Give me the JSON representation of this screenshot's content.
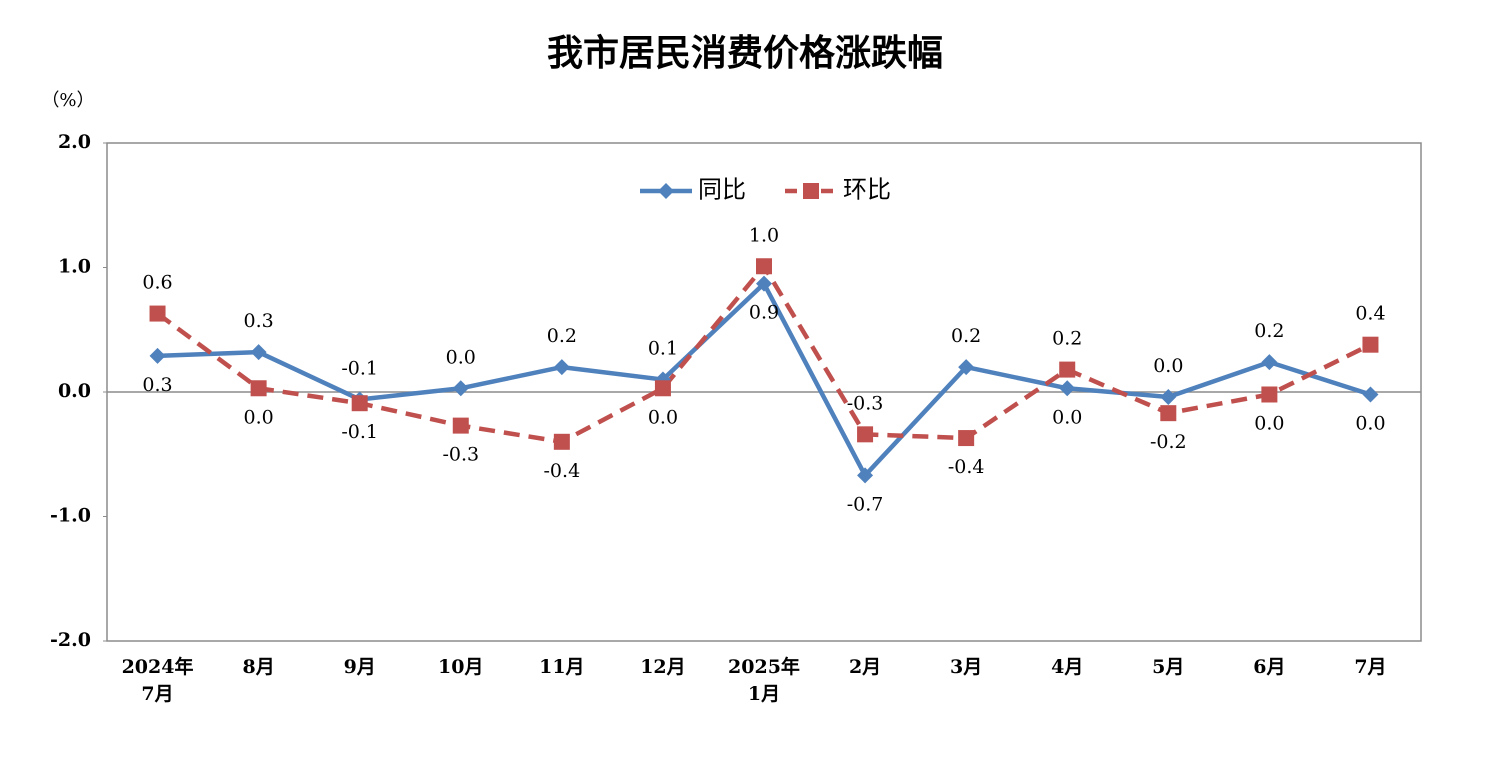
{
  "chart_data": {
    "type": "line",
    "title": "我市居民消费价格涨跌幅",
    "y_unit": "（%）",
    "categories": [
      "2024年\n7月",
      "8月",
      "9月",
      "10月",
      "11月",
      "12月",
      "2025年\n1月",
      "2月",
      "3月",
      "4月",
      "5月",
      "6月",
      "7月"
    ],
    "series": [
      {
        "name": "同比",
        "color": "#4f81bd",
        "marker": "diamond",
        "dashed": false,
        "values": [
          0.29,
          0.32,
          -0.06,
          0.03,
          0.2,
          0.1,
          0.87,
          -0.67,
          0.2,
          0.03,
          -0.04,
          0.24,
          -0.02
        ],
        "value_labels": [
          "0.3",
          "0.3",
          "-0.1",
          "0.0",
          "0.2",
          "0.1",
          "0.9",
          "-0.7",
          "0.2",
          "0.0",
          "0.0",
          "0.2",
          "0.0"
        ]
      },
      {
        "name": "环比",
        "color": "#c0504d",
        "marker": "square",
        "dashed": true,
        "values": [
          0.63,
          0.03,
          -0.09,
          -0.27,
          -0.4,
          0.03,
          1.01,
          -0.34,
          -0.37,
          0.18,
          -0.17,
          -0.02,
          0.38
        ],
        "value_labels": [
          "0.6",
          "0.0",
          "-0.1",
          "-0.3",
          "-0.4",
          "0.0",
          "1.0",
          "-0.3",
          "-0.4",
          "0.2",
          "-0.2",
          "0.0",
          "0.4"
        ]
      }
    ],
    "ylim": [
      -2,
      2
    ],
    "yticks": [
      {
        "value": 2,
        "label": "2.0"
      },
      {
        "value": 1,
        "label": "1.0"
      },
      {
        "value": 0,
        "label": "0.0"
      },
      {
        "value": -1,
        "label": "-1.0"
      },
      {
        "value": -2,
        "label": "-2.0"
      }
    ],
    "grid": false,
    "legend": "top"
  }
}
